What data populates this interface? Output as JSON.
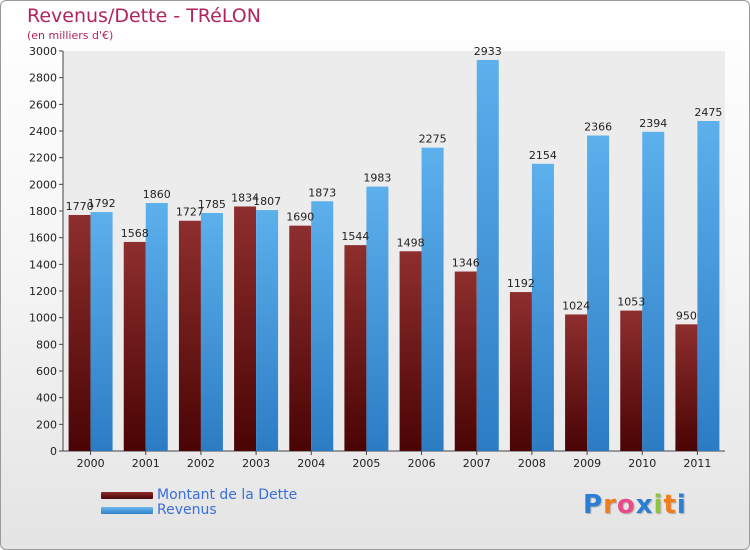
{
  "chart_data": {
    "type": "bar",
    "title": "Revenus/Dette - TRéLON",
    "subtitle": "(en milliers d'€)",
    "categories": [
      "2000",
      "2001",
      "2002",
      "2003",
      "2004",
      "2005",
      "2006",
      "2007",
      "2008",
      "2009",
      "2010",
      "2011"
    ],
    "series": [
      {
        "name": "Montant de la Dette",
        "color": "#7a1a1a",
        "values": [
          1770,
          1568,
          1727,
          1834,
          1690,
          1544,
          1498,
          1346,
          1192,
          1024,
          1053,
          950
        ],
        "labels": [
          "1770",
          "1568",
          "1727",
          "1834",
          "1690",
          "1544",
          "1498",
          "1346",
          "1192",
          "1024",
          "1053",
          "950"
        ]
      },
      {
        "name": "Revenus",
        "color": "#4ea6e6",
        "values": [
          1792,
          1860,
          1785,
          1807,
          1873,
          1983,
          2275,
          2933,
          2154,
          2366,
          2394,
          2475
        ],
        "labels": [
          "1792",
          "1860",
          "1785",
          "1807",
          "1873",
          "1983",
          "2275",
          "2933",
          "2154",
          "2366",
          "2394",
          "2475"
        ]
      }
    ],
    "ylim": [
      0,
      3000
    ],
    "yticks": [
      0,
      200,
      400,
      600,
      800,
      1000,
      1200,
      1400,
      1600,
      1800,
      2000,
      2200,
      2400,
      2600,
      2800,
      3000
    ],
    "xlabel": "",
    "ylabel": "",
    "grid": false,
    "legend": "bottom-left"
  },
  "logo": {
    "letters": [
      "P",
      "r",
      "o",
      "x",
      "i",
      "t",
      "i"
    ],
    "colors": [
      "#2a7fd4",
      "#f07d1a",
      "#e94b8a",
      "#2a7fd4",
      "#8cc63f",
      "#f07d1a",
      "#2a7fd4"
    ]
  }
}
